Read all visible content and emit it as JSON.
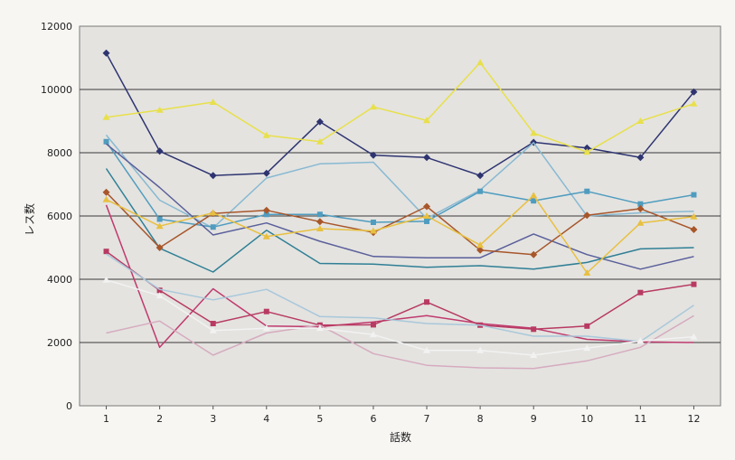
{
  "chart_data": {
    "type": "line",
    "title": "",
    "xlabel": "話数",
    "ylabel": "レス数",
    "x": [
      1,
      2,
      3,
      4,
      5,
      6,
      7,
      8,
      9,
      10,
      11,
      12
    ],
    "ylim": [
      0,
      12000
    ],
    "yticks": [
      0,
      2000,
      4000,
      6000,
      8000,
      10000,
      12000
    ],
    "grid": true,
    "legend": "none",
    "series": [
      {
        "color": "#2e3470",
        "marker": "diamond",
        "values": [
          11150,
          8050,
          7280,
          7350,
          8980,
          7920,
          7850,
          7280,
          8330,
          8150,
          7850,
          9920
        ]
      },
      {
        "color": "#e8e04a",
        "marker": "triangle",
        "values": [
          9120,
          9350,
          9600,
          8550,
          8350,
          9450,
          9020,
          10850,
          8620,
          8020,
          9000,
          9550
        ]
      },
      {
        "color": "#88b9d2",
        "marker": "none",
        "values": [
          8560,
          6500,
          5620,
          7200,
          7650,
          7700,
          5920,
          6820,
          8320,
          6000,
          6100,
          6150
        ]
      },
      {
        "color": "#4f9cbf",
        "marker": "square",
        "values": [
          8350,
          5900,
          5650,
          6050,
          6050,
          5800,
          5830,
          6780,
          6480,
          6780,
          6380,
          6670
        ]
      },
      {
        "color": "#5a5f9a",
        "marker": "none",
        "values": [
          8280,
          6900,
          5400,
          5780,
          5200,
          4720,
          4680,
          4680,
          5430,
          4780,
          4320,
          4720
        ]
      },
      {
        "color": "#2f7f95",
        "marker": "none",
        "values": [
          7500,
          4980,
          4230,
          5550,
          4500,
          4480,
          4380,
          4430,
          4320,
          4530,
          4960,
          5000
        ]
      },
      {
        "color": "#a8562a",
        "marker": "diamond",
        "values": [
          6750,
          5000,
          6080,
          6180,
          5820,
          5480,
          6300,
          4920,
          4780,
          6020,
          6230,
          5570
        ]
      },
      {
        "color": "#e8c040",
        "marker": "triangle",
        "values": [
          6520,
          5680,
          6100,
          5350,
          5600,
          5530,
          6000,
          5080,
          6650,
          4200,
          5780,
          5980
        ]
      },
      {
        "color": "#c03a6e",
        "marker": "none",
        "values": [
          6350,
          1850,
          3700,
          2520,
          2500,
          2650,
          2850,
          2600,
          2450,
          2100,
          2020,
          2000
        ]
      },
      {
        "color": "#b83a62",
        "marker": "square",
        "values": [
          4880,
          3650,
          2600,
          2980,
          2550,
          2560,
          3280,
          2550,
          2420,
          2520,
          3580,
          3840
        ]
      },
      {
        "color": "#a9c8da",
        "marker": "none",
        "values": [
          4800,
          3680,
          3350,
          3680,
          2820,
          2780,
          2600,
          2550,
          2200,
          2200,
          2030,
          3180
        ]
      },
      {
        "color": "#d6abbf",
        "marker": "none",
        "values": [
          2300,
          2680,
          1600,
          2300,
          2550,
          1650,
          1280,
          1200,
          1180,
          1420,
          1850,
          2850
        ]
      },
      {
        "color": "#f2f2f2",
        "marker": "triangle",
        "values": [
          3980,
          3480,
          2380,
          2450,
          2450,
          2250,
          1750,
          1750,
          1600,
          1820,
          2050,
          2180
        ]
      }
    ]
  }
}
